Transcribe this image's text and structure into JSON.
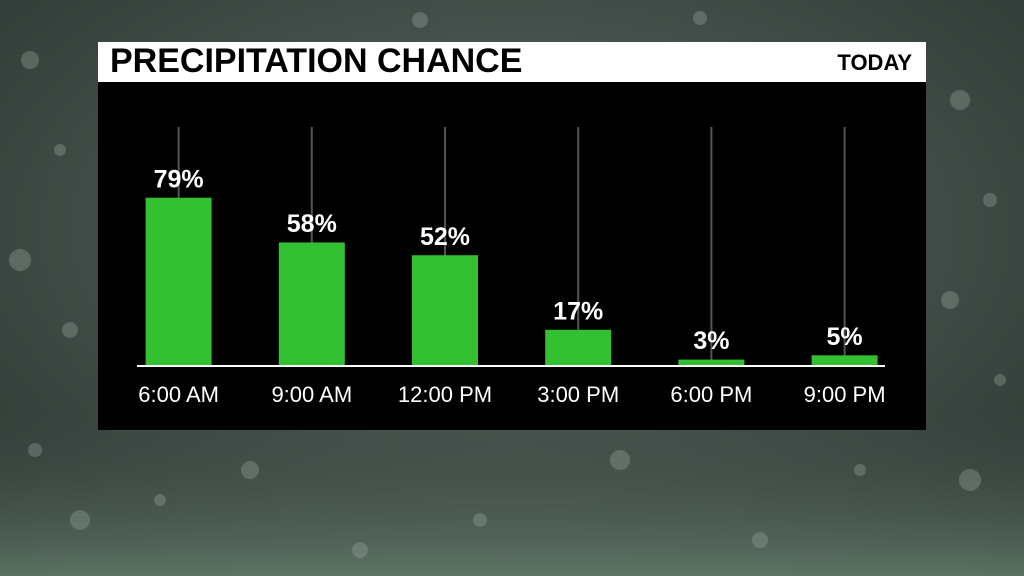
{
  "chart_data": {
    "type": "bar",
    "title": "PRECIPITATION CHANCE",
    "subtitle": "TODAY",
    "categories": [
      "6:00 AM",
      "9:00 AM",
      "12:00 PM",
      "3:00 PM",
      "6:00 PM",
      "9:00 PM"
    ],
    "values": [
      79,
      58,
      52,
      17,
      3,
      5
    ],
    "value_labels": [
      "79%",
      "58%",
      "52%",
      "17%",
      "3%",
      "5%"
    ],
    "color": "#33c133"
  }
}
